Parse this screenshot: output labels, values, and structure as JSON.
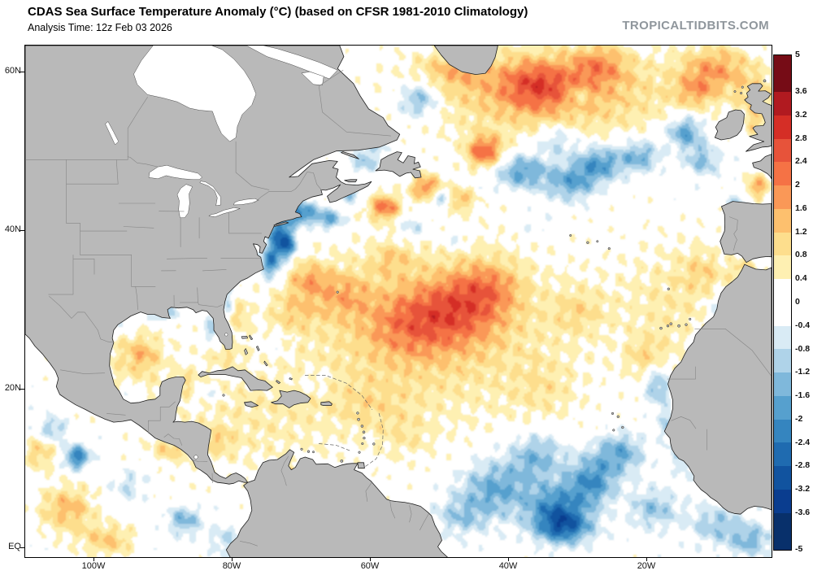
{
  "header": {
    "title": "CDAS Sea Surface Temperature Anomaly (°C) (based on CFSR 1981-2010 Climatology)",
    "analysis_time": "Analysis Time: 12z Feb 03 2026",
    "watermark": "TROPICALTIDBITS.COM"
  },
  "axes": {
    "lat_ticks": [
      {
        "label": "60N",
        "lat": 60
      },
      {
        "label": "40N",
        "lat": 40
      },
      {
        "label": "20N",
        "lat": 20
      },
      {
        "label": "EQ",
        "lat": 0
      }
    ],
    "lon_ticks": [
      {
        "label": "100W",
        "lon": 100
      },
      {
        "label": "80W",
        "lon": 80
      },
      {
        "label": "60W",
        "lon": 60
      },
      {
        "label": "40W",
        "lon": 40
      },
      {
        "label": "20W",
        "lon": 20
      }
    ]
  },
  "colorbar": {
    "unit": "°C",
    "labels": [
      "5",
      "3.6",
      "3.2",
      "2.8",
      "2.4",
      "2",
      "1.6",
      "1.2",
      "0.8",
      "0.4",
      "0",
      "-0.4",
      "-0.8",
      "-1.2",
      "-1.6",
      "-2",
      "-2.4",
      "-2.8",
      "-3.2",
      "-3.6",
      "-5"
    ],
    "levels_top_to_bottom": [
      5,
      3.6,
      3.2,
      2.8,
      2.4,
      2,
      1.6,
      1.2,
      0.8,
      0.4,
      0,
      -0.4,
      -0.8,
      -1.2,
      -1.6,
      -2,
      -2.4,
      -2.8,
      -3.2,
      -3.6,
      -5
    ],
    "colors_top_to_bottom": [
      "#760C16",
      "#B11A20",
      "#D52E26",
      "#E7533A",
      "#F57245",
      "#FA9857",
      "#FDC06E",
      "#FDDE8D",
      "#FEF0B2",
      "#FFFFFF",
      "#FFFFFF",
      "#D9EBF5",
      "#AFD3E9",
      "#7FB8DB",
      "#56A0CE",
      "#3585BF",
      "#1F6BB0",
      "#11539F",
      "#0A3D8F",
      "#08306B"
    ]
  },
  "map_style": {
    "land": "#b9b9b9",
    "coast": "#1f1f1f",
    "internal_border": "#858585",
    "dashed_line": "#666666",
    "water": "#ffffff"
  },
  "chart_data": {
    "type": "heatmap",
    "title": "CDAS Sea Surface Temperature Anomaly (°C) (based on CFSR 1981-2010 Climatology)",
    "subtitle": "Analysis Time: 12z Feb 03 2026",
    "units": "°C",
    "extent": {
      "lon_west": 110,
      "lon_east": 2,
      "lat_south": -1.1,
      "lat_north": 63.4
    },
    "anomaly_scale_c": [
      -5,
      5
    ],
    "region_fields": [
      "lon_w_deg",
      "lat_n_deg",
      "rx_deg",
      "ry_deg",
      "anomaly_c"
    ],
    "anomaly_regions": [
      [
        52,
        27,
        20,
        11,
        1.05
      ],
      [
        78,
        16,
        14,
        7,
        0.55
      ],
      [
        34,
        57.5,
        18,
        5.5,
        1.5
      ],
      [
        16,
        31,
        9,
        8,
        0.65
      ],
      [
        95,
        23.5,
        6,
        5,
        0.6
      ],
      [
        48,
        30,
        7,
        4.5,
        1.5
      ],
      [
        43,
        33,
        5,
        3.5,
        1.1
      ],
      [
        55,
        28,
        6,
        4,
        0.9
      ],
      [
        64,
        32,
        4,
        3,
        1.0
      ],
      [
        69,
        34,
        3,
        2.2,
        1.2
      ],
      [
        71,
        30,
        3.5,
        2.5,
        0.8
      ],
      [
        58,
        43,
        2.2,
        1.6,
        2.1
      ],
      [
        52,
        45.5,
        2.2,
        1.7,
        1.9
      ],
      [
        47,
        44,
        2,
        1.5,
        1.3
      ],
      [
        43.5,
        50,
        2.6,
        2,
        2.3
      ],
      [
        36,
        58.5,
        5,
        3,
        1.4
      ],
      [
        27,
        61,
        4,
        2.5,
        1.2
      ],
      [
        48,
        60.5,
        5,
        2.5,
        0.9
      ],
      [
        10,
        60.5,
        5,
        3,
        1.5
      ],
      [
        4,
        57,
        3,
        3,
        1.0
      ],
      [
        13,
        57.5,
        3,
        2,
        1.0
      ],
      [
        4.2,
        53.5,
        1.3,
        1.6,
        0.9
      ],
      [
        4,
        45.6,
        1.8,
        1.5,
        1.6
      ],
      [
        6,
        35,
        2,
        1.5,
        0.9
      ],
      [
        12,
        35,
        3,
        2.5,
        0.7
      ],
      [
        20,
        24,
        3,
        2.5,
        0.8
      ],
      [
        30,
        30,
        4,
        3,
        0.7
      ],
      [
        93,
        24.5,
        2.5,
        2,
        0.9
      ],
      [
        81,
        24.5,
        2.5,
        1.5,
        0.6
      ],
      [
        79,
        29.5,
        1.2,
        2,
        0.9
      ],
      [
        87,
        21,
        2,
        1.5,
        0.6
      ],
      [
        82,
        13.5,
        2.2,
        1.6,
        0.7
      ],
      [
        71.5,
        9.3,
        0.9,
        0.8,
        3.0
      ],
      [
        104,
        5,
        4,
        3,
        1.4
      ],
      [
        108,
        12,
        2.5,
        2,
        1.1
      ],
      [
        98,
        1,
        4,
        2,
        1.2
      ],
      [
        89,
        12.5,
        2.5,
        1.5,
        0.9
      ],
      [
        57,
        36.5,
        3,
        2,
        0.8
      ],
      [
        35,
        20,
        5,
        4,
        0.5
      ],
      [
        60,
        18,
        6,
        3,
        0.45
      ],
      [
        55,
        14,
        4,
        2.5,
        0.5
      ],
      [
        73,
        39.5,
        1.8,
        2.6,
        -2.6
      ],
      [
        74.5,
        36,
        1.5,
        2,
        -2.1
      ],
      [
        70,
        42.3,
        2.2,
        1.4,
        -2.3
      ],
      [
        66,
        41.5,
        2,
        1.3,
        -1.7
      ],
      [
        72,
        38,
        1.3,
        1.3,
        -1.4
      ],
      [
        63,
        44.6,
        1.6,
        1,
        -1.2
      ],
      [
        50,
        44,
        1.5,
        1.2,
        -1.3
      ],
      [
        54,
        40.5,
        2,
        1.5,
        -0.9
      ],
      [
        38,
        47.5,
        4,
        2.2,
        -1.8
      ],
      [
        31,
        46,
        3.5,
        2.2,
        -1.6
      ],
      [
        27,
        48.5,
        3.5,
        2.2,
        -1.9
      ],
      [
        21,
        49.5,
        3,
        2,
        -1.5
      ],
      [
        14.5,
        52.5,
        2.5,
        2,
        -1.9
      ],
      [
        12,
        49,
        2.5,
        2,
        -1.3
      ],
      [
        33,
        51.5,
        3,
        2,
        -1.1
      ],
      [
        53,
        56.5,
        3,
        2.2,
        -1.7
      ],
      [
        60,
        51,
        2.5,
        2,
        -0.9
      ],
      [
        42,
        7.5,
        5,
        3.5,
        -1.6
      ],
      [
        33,
        5,
        4.5,
        3,
        -2.1
      ],
      [
        36,
        11.5,
        4,
        3,
        -1.4
      ],
      [
        28,
        8.5,
        3.5,
        3,
        -1.9
      ],
      [
        24,
        12,
        3.5,
        2.5,
        -1.6
      ],
      [
        47,
        4,
        4,
        2.5,
        -1.0
      ],
      [
        32,
        2.5,
        4,
        2,
        -2.0
      ],
      [
        19,
        5,
        3.5,
        2.5,
        -1.2
      ],
      [
        10,
        3,
        4,
        2.5,
        -1.1
      ],
      [
        5,
        1,
        3,
        2,
        -1.3
      ],
      [
        18.5,
        20.5,
        1.8,
        2.6,
        -1.5
      ],
      [
        16.5,
        15.5,
        1.6,
        2,
        -1.2
      ],
      [
        14.5,
        11.5,
        1.8,
        2,
        -1.1
      ],
      [
        12.5,
        24.5,
        1.6,
        2,
        -1.1
      ],
      [
        10,
        30,
        1.6,
        2,
        -0.8
      ],
      [
        102.5,
        11.5,
        1.8,
        1.5,
        -2.3
      ],
      [
        106,
        15,
        2,
        1.5,
        -1.2
      ],
      [
        87,
        3.5,
        2.5,
        1.8,
        -1.4
      ],
      [
        95,
        8,
        2.5,
        2,
        -0.8
      ],
      [
        83.5,
        19.5,
        1.6,
        1.1,
        -0.8
      ],
      [
        95,
        19.5,
        1.6,
        1,
        -0.9
      ],
      [
        90,
        29.5,
        2.5,
        0.9,
        -1.2
      ],
      [
        96,
        28.5,
        1.3,
        1,
        -0.9
      ],
      [
        83,
        27.5,
        1,
        1.6,
        -1.3
      ],
      [
        80.5,
        31,
        1,
        1.6,
        -0.9
      ],
      [
        61,
        48.5,
        2,
        1.3,
        -0.9
      ],
      [
        7,
        43.5,
        1.6,
        1.3,
        -0.9
      ],
      [
        81,
        1,
        2.5,
        2,
        -0.8
      ],
      [
        65,
        4,
        3,
        2,
        -0.6
      ],
      [
        48,
        39,
        1.8,
        1.3,
        -0.7
      ],
      [
        30,
        57,
        1.6,
        1.3,
        -0.8
      ],
      [
        36,
        41,
        2,
        1.6,
        -0.5
      ],
      [
        68,
        21,
        2.5,
        1.6,
        -0.45
      ],
      [
        74,
        25.5,
        2,
        1.6,
        -0.5
      ]
    ]
  }
}
